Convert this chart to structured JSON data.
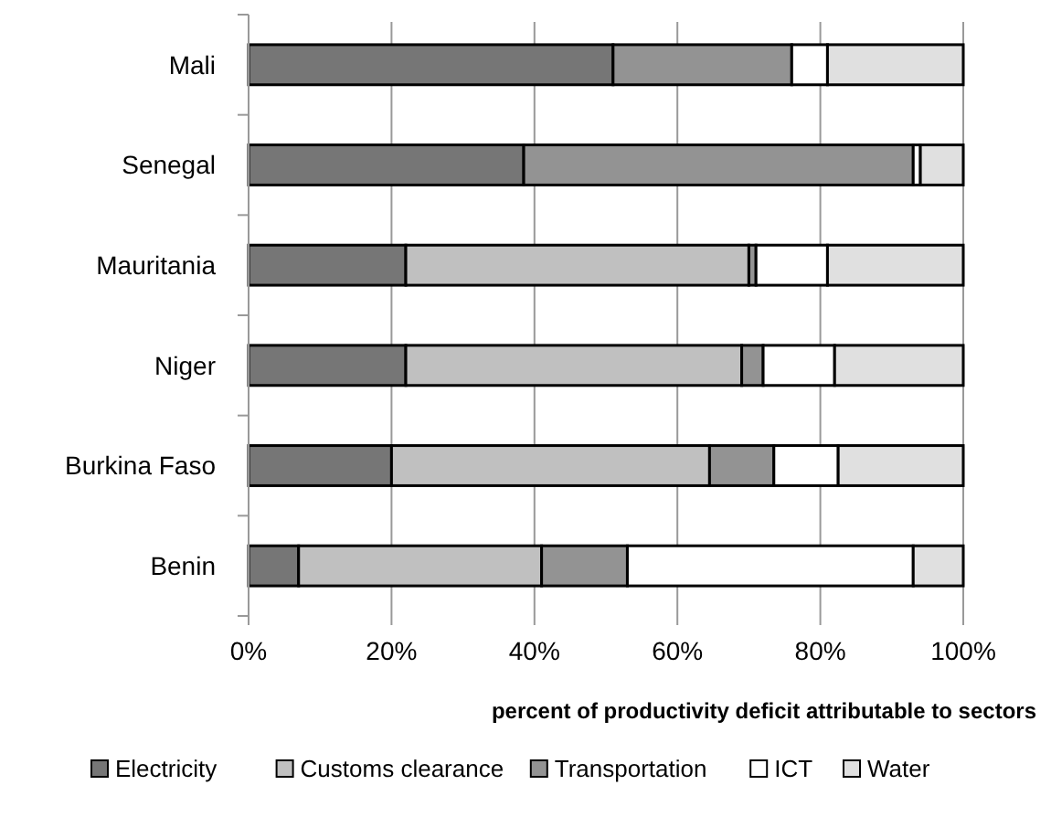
{
  "chart_data": {
    "type": "bar",
    "orientation": "horizontal",
    "stacked": true,
    "categories": [
      "Mali",
      "Senegal",
      "Mauritania",
      "Niger",
      "Burkina Faso",
      "Benin"
    ],
    "series": [
      {
        "name": "Electricity",
        "color": "#767676",
        "values": [
          51,
          38.5,
          22,
          22,
          20,
          7
        ]
      },
      {
        "name": "Customs clearance",
        "color": "#c0c0c0",
        "values": [
          0,
          0,
          48,
          47,
          44.5,
          34
        ]
      },
      {
        "name": "Transportation",
        "color": "#939393",
        "values": [
          25,
          54.5,
          1,
          3,
          9,
          12
        ]
      },
      {
        "name": "ICT",
        "color": "#ffffff",
        "values": [
          5,
          1,
          10,
          10,
          9,
          40
        ]
      },
      {
        "name": "Water",
        "color": "#e0e0e0",
        "values": [
          19,
          6,
          19,
          18,
          17.5,
          7
        ]
      }
    ],
    "xlim": [
      0,
      100
    ],
    "xticks": [
      {
        "value": 0,
        "label": "0%"
      },
      {
        "value": 20,
        "label": "20%"
      },
      {
        "value": 40,
        "label": "40%"
      },
      {
        "value": 60,
        "label": "60%"
      },
      {
        "value": 80,
        "label": "80%"
      },
      {
        "value": 100,
        "label": "100%"
      }
    ],
    "xlabel": "percent of productivity deficit attributable to sectors",
    "grid": "x",
    "legend": "bottom"
  }
}
